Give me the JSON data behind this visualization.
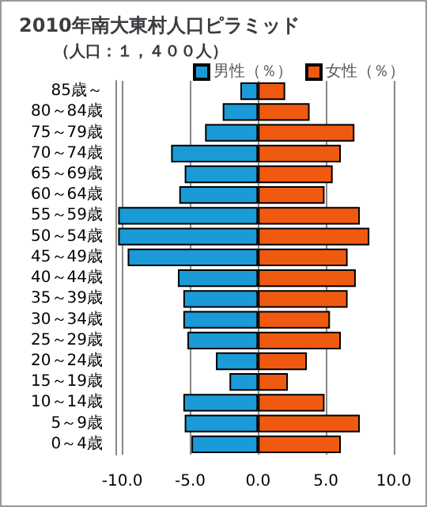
{
  "chart_data": {
    "type": "bar",
    "orientation": "horizontal",
    "title": "2010年南大東村人口ピラミッド",
    "subtitle": "（人口：１，４００人）",
    "categories": [
      "85歳～",
      "80～84歳",
      "75～79歳",
      "70～74歳",
      "65～69歳",
      "60～64歳",
      "55～59歳",
      "50～54歳",
      "45～49歳",
      "40～44歳",
      "35～39歳",
      "30～34歳",
      "25～29歳",
      "20～24歳",
      "15～19歳",
      "10～14歳",
      "5～9歳",
      "0～4歳"
    ],
    "series": [
      {
        "name": "男性（％）",
        "color": "#1a9ad6",
        "values": [
          -1.3,
          -2.6,
          -3.9,
          -6.4,
          -5.4,
          -5.8,
          -10.3,
          -10.3,
          -9.6,
          -5.9,
          -5.5,
          -5.5,
          -5.2,
          -3.1,
          -2.1,
          -5.5,
          -5.4,
          -4.9
        ]
      },
      {
        "name": "女性（％）",
        "color": "#f05a10",
        "values": [
          2.0,
          3.8,
          7.1,
          6.1,
          5.5,
          4.9,
          7.5,
          8.2,
          6.6,
          7.2,
          6.6,
          5.3,
          6.1,
          3.6,
          2.2,
          4.9,
          7.5,
          6.1
        ]
      }
    ],
    "xlim": [
      -10.5,
      10
    ],
    "xticks": [
      {
        "value": -10,
        "label": "-10.0"
      },
      {
        "value": -5,
        "label": "-5.0"
      },
      {
        "value": 0,
        "label": "0.0"
      },
      {
        "value": 5,
        "label": "5.0"
      },
      {
        "value": 10,
        "label": "10.0"
      }
    ],
    "stacked": true,
    "grid": "x",
    "legend": "top right"
  }
}
